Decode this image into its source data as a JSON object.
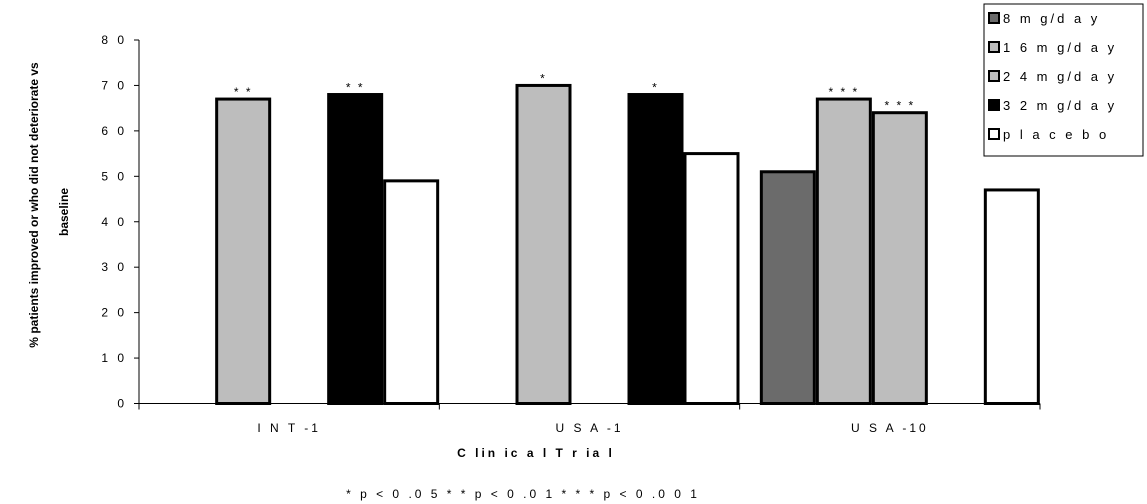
{
  "chart_data": {
    "type": "bar",
    "title": "",
    "xlabel": "Clinical Trial",
    "ylabel_lines": [
      "% patients improved or who did not deteriorate vs",
      "baseline"
    ],
    "ylim": [
      0,
      80
    ],
    "yticks": [
      0,
      10,
      20,
      30,
      40,
      50,
      60,
      70,
      80
    ],
    "grid": false,
    "legend_position": "top-right",
    "categories": [
      "INT-1",
      "USA-1",
      "USA-10"
    ],
    "series": [
      {
        "name": "8 mg/day",
        "legend_label": "8 m g/d a y",
        "color": "#6b6b6b",
        "values": [
          null,
          null,
          51
        ],
        "annotations": [
          "",
          "",
          ""
        ]
      },
      {
        "name": "16 mg/day",
        "legend_label": "1 6 m g/d a y",
        "color": "#bdbdbd",
        "values": [
          67,
          70,
          67
        ],
        "annotations": [
          "* *",
          "*",
          "* * *"
        ]
      },
      {
        "name": "24 mg/day",
        "legend_label": "2 4 m g/d a y",
        "color": "#bdbdbd",
        "values": [
          null,
          null,
          64
        ],
        "annotations": [
          "",
          "",
          "* * *"
        ]
      },
      {
        "name": "32 mg/day",
        "legend_label": "3 2 m g/d a y",
        "color": "#000000",
        "values": [
          68,
          68,
          null
        ],
        "annotations": [
          "* *",
          "*",
          ""
        ]
      },
      {
        "name": "placebo",
        "legend_label": "p l a c e b o",
        "color": "#ffffff",
        "values": [
          49,
          55,
          47
        ],
        "annotations": [
          "",
          "",
          ""
        ]
      }
    ],
    "category_labels": [
      "I N T -1",
      "U S A -1",
      "U S A -10"
    ],
    "ytick_labels": [
      "0",
      "1 0",
      "2 0",
      "3 0",
      "4 0",
      "5 0",
      "6 0",
      "7 0",
      "8 0"
    ],
    "xlabel_display": "C lin ic a l T r ia l",
    "footnote": "* p < 0 .0 5   * * p < 0 .0 1   * * * p < 0 .0 0 1"
  }
}
